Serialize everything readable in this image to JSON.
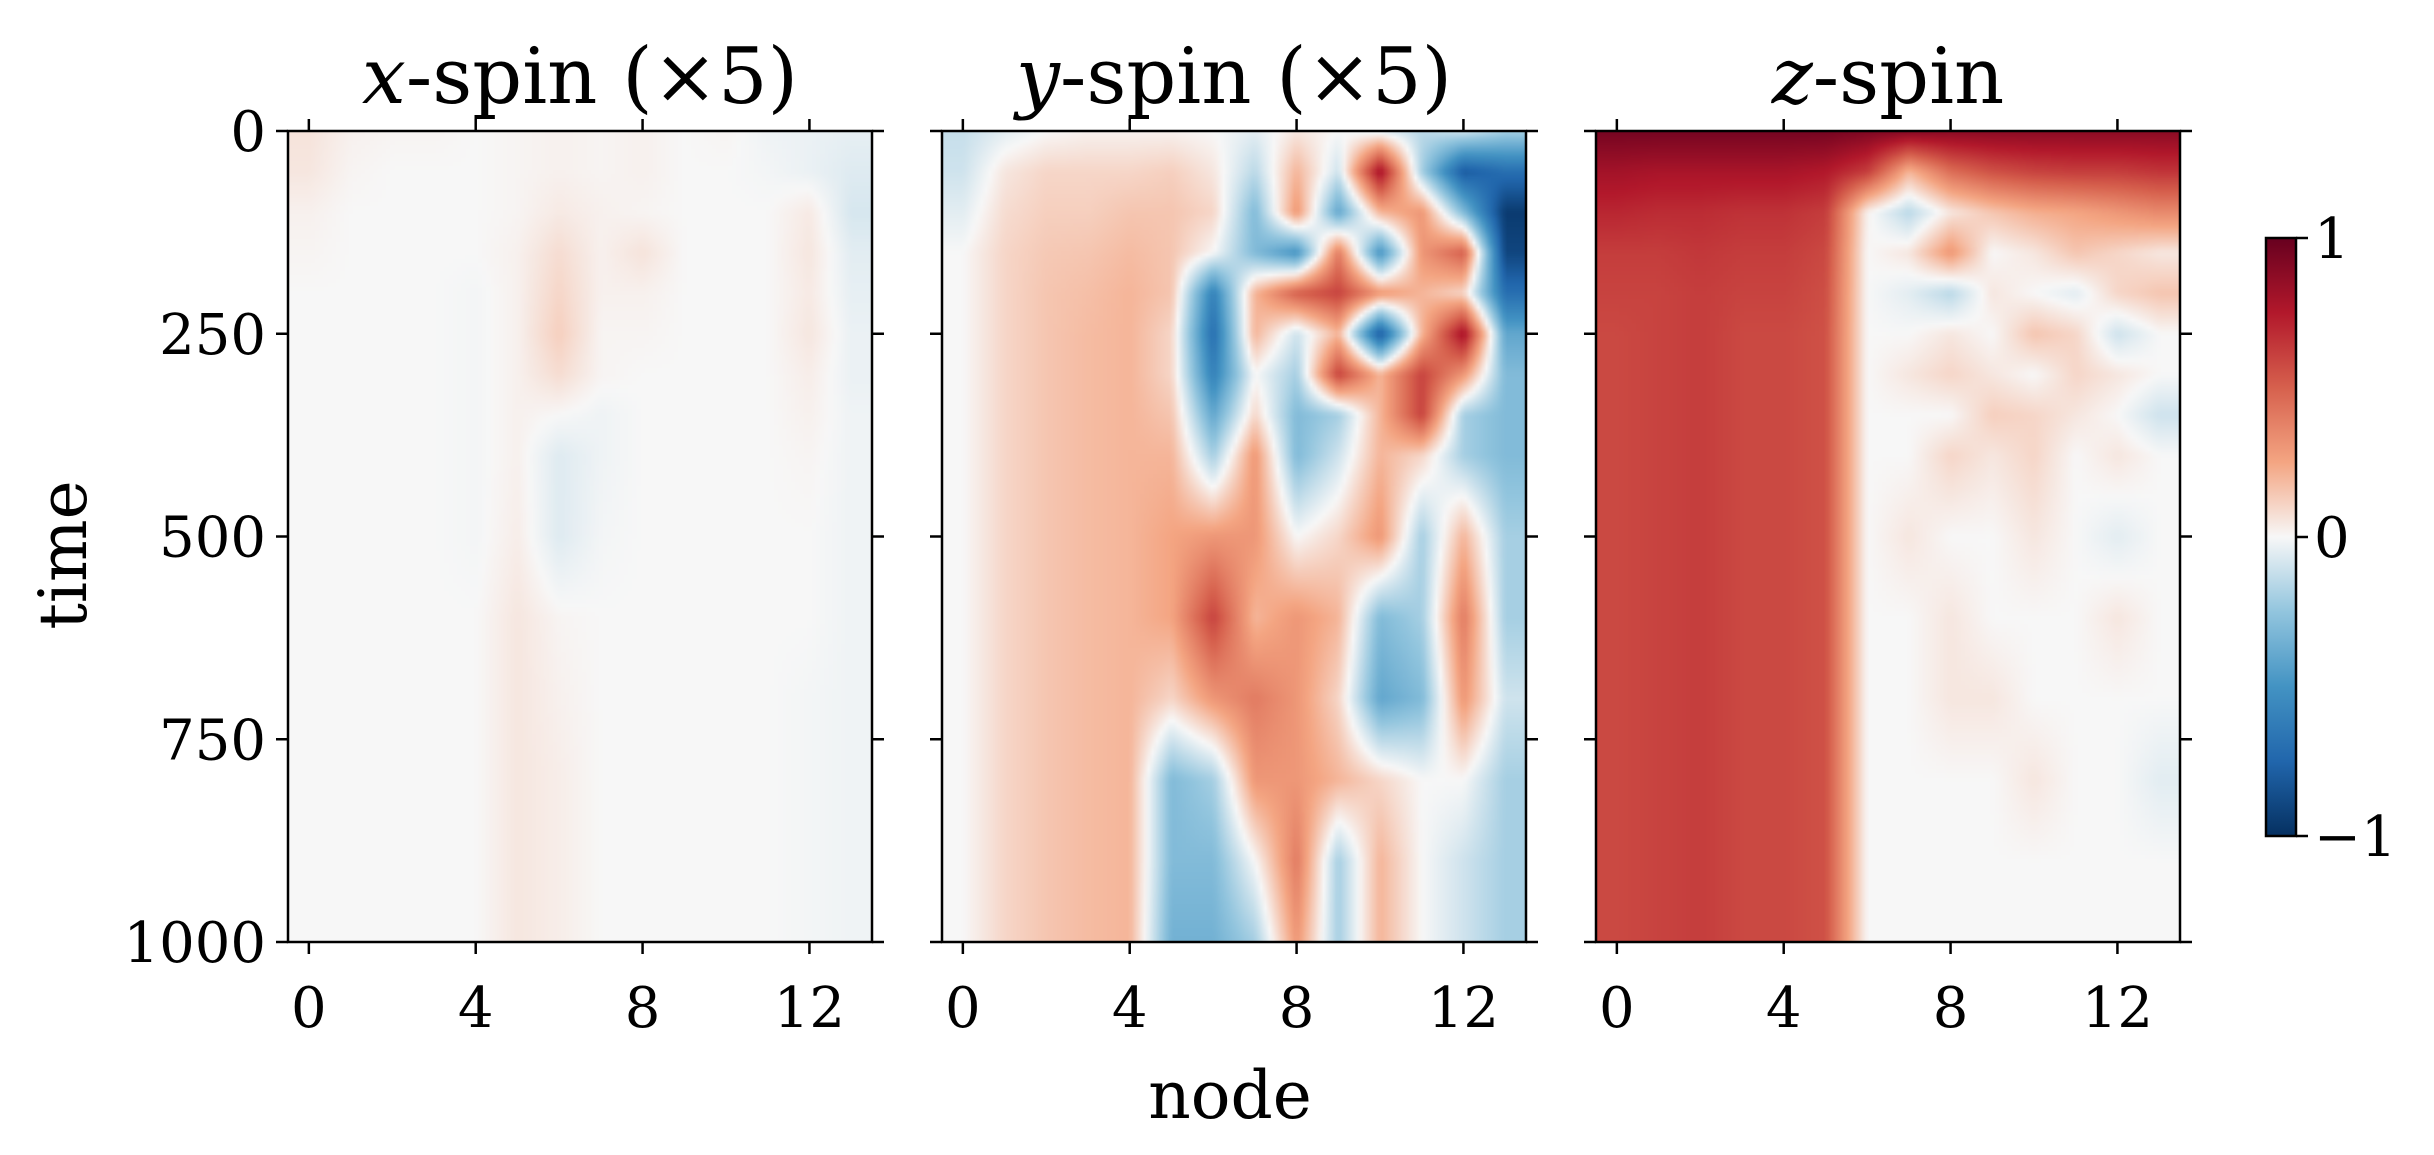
{
  "chart_data": {
    "type": "heatmap",
    "colormap": "RdBu_r",
    "xlabel": "node",
    "ylabel": "time",
    "xlim": [
      -0.5,
      13.5
    ],
    "ylim": [
      0,
      1000
    ],
    "y_inverted": true,
    "x_ticks": [
      0,
      4,
      8,
      12
    ],
    "x_tick_labels": [
      "0",
      "4",
      "8",
      "12"
    ],
    "y_ticks": [
      0,
      250,
      500,
      750,
      1000
    ],
    "y_tick_labels": [
      "0",
      "250",
      "500",
      "750",
      "1000"
    ],
    "colorbar": {
      "min": -1,
      "max": 1,
      "ticks": [
        -1,
        0,
        1
      ],
      "tick_labels": [
        "−1",
        "0",
        "1"
      ]
    },
    "times": [
      0,
      50,
      100,
      150,
      200,
      250,
      300,
      350,
      400,
      500,
      600,
      700,
      800,
      900,
      1000
    ],
    "nodes": [
      0,
      1,
      2,
      3,
      4,
      5,
      6,
      7,
      8,
      9,
      10,
      11,
      12,
      13
    ],
    "panels": [
      {
        "title_var": "x",
        "title_rest": "-spin (×5)",
        "values": [
          [
            0.06,
            0.02,
            0.01,
            0.01,
            0.0,
            0.01,
            0.02,
            0.01,
            0.02,
            0.0,
            0.01,
            -0.02,
            -0.03,
            -0.04
          ],
          [
            0.05,
            0.01,
            0.0,
            0.0,
            0.0,
            0.01,
            0.02,
            0.01,
            0.02,
            0.0,
            0.0,
            -0.01,
            -0.03,
            -0.06
          ],
          [
            0.02,
            0.0,
            0.0,
            0.0,
            0.0,
            0.01,
            0.04,
            0.02,
            0.01,
            0.0,
            0.0,
            0.0,
            0.04,
            -0.08
          ],
          [
            0.01,
            0.0,
            0.0,
            0.0,
            0.0,
            0.02,
            0.08,
            0.02,
            0.06,
            0.0,
            0.0,
            0.0,
            0.05,
            -0.05
          ],
          [
            0.0,
            0.0,
            0.0,
            0.0,
            -0.01,
            0.02,
            0.1,
            0.02,
            0.02,
            0.0,
            0.0,
            0.0,
            0.04,
            -0.04
          ],
          [
            0.0,
            0.0,
            0.0,
            0.0,
            -0.01,
            0.02,
            0.12,
            0.01,
            0.01,
            0.0,
            0.0,
            0.0,
            0.05,
            -0.03
          ],
          [
            0.0,
            0.0,
            0.0,
            0.0,
            -0.01,
            0.02,
            0.08,
            0.01,
            0.0,
            0.0,
            0.0,
            0.0,
            0.03,
            -0.03
          ],
          [
            0.0,
            0.0,
            0.0,
            0.0,
            -0.01,
            0.02,
            0.0,
            -0.02,
            0.0,
            0.0,
            0.0,
            0.0,
            0.02,
            -0.02
          ],
          [
            0.0,
            0.0,
            0.0,
            0.0,
            -0.01,
            0.02,
            -0.06,
            -0.02,
            0.0,
            0.0,
            0.0,
            0.0,
            0.01,
            -0.02
          ],
          [
            0.0,
            0.0,
            0.0,
            0.0,
            -0.01,
            0.03,
            -0.06,
            -0.01,
            0.0,
            0.0,
            0.0,
            0.0,
            0.0,
            -0.02
          ],
          [
            0.0,
            0.0,
            0.0,
            0.0,
            0.0,
            0.05,
            0.01,
            0.0,
            0.0,
            0.0,
            0.0,
            0.0,
            0.0,
            -0.02
          ],
          [
            0.0,
            0.0,
            0.0,
            0.0,
            0.0,
            0.05,
            0.02,
            0.0,
            0.0,
            0.0,
            0.0,
            0.0,
            -0.01,
            -0.02
          ],
          [
            0.0,
            0.0,
            0.0,
            0.0,
            0.0,
            0.05,
            0.03,
            0.0,
            0.0,
            0.0,
            0.0,
            0.0,
            -0.01,
            -0.02
          ],
          [
            0.0,
            0.0,
            0.0,
            0.0,
            0.0,
            0.05,
            0.03,
            0.0,
            0.0,
            0.0,
            0.0,
            0.0,
            -0.01,
            -0.02
          ],
          [
            0.0,
            0.0,
            0.0,
            0.0,
            0.0,
            0.05,
            0.03,
            0.0,
            0.0,
            0.0,
            0.0,
            0.0,
            -0.01,
            -0.02
          ]
        ]
      },
      {
        "title_var": "y",
        "title_rest": "-spin (×5)",
        "values": [
          [
            -0.12,
            -0.05,
            0.0,
            0.02,
            0.02,
            0.02,
            0.0,
            -0.05,
            0.05,
            0.0,
            -0.05,
            -0.15,
            -0.1,
            -0.2
          ],
          [
            -0.1,
            0.05,
            0.1,
            0.1,
            0.1,
            0.12,
            0.05,
            -0.15,
            0.2,
            -0.1,
            0.8,
            -0.2,
            -0.8,
            -0.7
          ],
          [
            -0.05,
            0.08,
            0.12,
            0.12,
            0.15,
            0.15,
            0.1,
            -0.3,
            0.3,
            -0.4,
            0.2,
            0.3,
            -0.3,
            -0.95
          ],
          [
            0.0,
            0.1,
            0.14,
            0.15,
            0.18,
            0.15,
            0.0,
            -0.3,
            -0.5,
            0.4,
            -0.5,
            0.3,
            0.5,
            -0.9
          ],
          [
            0.0,
            0.1,
            0.15,
            0.17,
            0.2,
            0.15,
            -0.6,
            0.2,
            0.5,
            0.6,
            0.3,
            0.2,
            0.1,
            -0.7
          ],
          [
            0.0,
            0.1,
            0.15,
            0.18,
            0.2,
            0.1,
            -0.7,
            0.2,
            -0.1,
            0.2,
            -0.8,
            0.2,
            0.8,
            -0.4
          ],
          [
            0.0,
            0.1,
            0.15,
            0.18,
            0.2,
            0.1,
            -0.6,
            0.0,
            -0.2,
            0.6,
            0.2,
            0.6,
            0.3,
            -0.3
          ],
          [
            0.0,
            0.1,
            0.15,
            0.18,
            0.2,
            0.15,
            -0.4,
            0.1,
            -0.3,
            -0.2,
            0.2,
            0.6,
            -0.2,
            -0.3
          ],
          [
            0.0,
            0.1,
            0.15,
            0.18,
            0.2,
            0.2,
            -0.2,
            0.3,
            -0.3,
            -0.1,
            0.2,
            0.1,
            -0.2,
            -0.3
          ],
          [
            0.0,
            0.1,
            0.15,
            0.18,
            0.2,
            0.25,
            0.3,
            0.3,
            0.0,
            0.1,
            0.3,
            -0.2,
            0.2,
            -0.2
          ],
          [
            0.0,
            0.1,
            0.15,
            0.18,
            0.2,
            0.25,
            0.6,
            0.2,
            0.3,
            0.2,
            -0.3,
            -0.2,
            0.4,
            -0.2
          ],
          [
            0.0,
            0.1,
            0.15,
            0.18,
            0.2,
            0.1,
            0.3,
            0.4,
            0.3,
            0.1,
            -0.4,
            -0.3,
            0.3,
            -0.1
          ],
          [
            0.0,
            0.1,
            0.15,
            0.18,
            0.2,
            -0.3,
            -0.2,
            0.3,
            0.3,
            0.2,
            0.1,
            0.0,
            0.0,
            -0.2
          ],
          [
            0.0,
            0.1,
            0.15,
            0.18,
            0.2,
            -0.3,
            -0.3,
            0.0,
            0.4,
            -0.2,
            0.2,
            0.0,
            -0.1,
            -0.2
          ],
          [
            0.0,
            0.1,
            0.15,
            0.18,
            0.2,
            -0.35,
            -0.35,
            -0.2,
            0.3,
            -0.2,
            0.2,
            0.0,
            -0.1,
            -0.2
          ]
        ]
      },
      {
        "title_var": "z",
        "title_rest": "-spin",
        "values": [
          [
            0.95,
            0.95,
            0.95,
            0.95,
            0.95,
            0.95,
            0.92,
            0.9,
            0.88,
            0.88,
            0.88,
            0.88,
            0.88,
            0.88
          ],
          [
            0.8,
            0.78,
            0.78,
            0.78,
            0.78,
            0.75,
            0.62,
            0.2,
            0.45,
            0.55,
            0.6,
            0.62,
            0.62,
            0.65
          ],
          [
            0.7,
            0.68,
            0.68,
            0.66,
            0.66,
            0.62,
            0.02,
            -0.15,
            0.05,
            0.15,
            0.22,
            0.25,
            0.3,
            0.35
          ],
          [
            0.62,
            0.62,
            0.64,
            0.62,
            0.62,
            0.58,
            0.0,
            0.05,
            0.3,
            0.0,
            0.05,
            0.15,
            0.1,
            0.05
          ],
          [
            0.6,
            0.6,
            0.62,
            0.6,
            0.6,
            0.56,
            0.0,
            -0.05,
            -0.15,
            0.05,
            0.0,
            -0.05,
            0.1,
            0.15
          ],
          [
            0.58,
            0.6,
            0.62,
            0.58,
            0.58,
            0.55,
            0.0,
            0.0,
            0.05,
            0.0,
            0.15,
            0.1,
            -0.1,
            0.0
          ],
          [
            0.58,
            0.6,
            0.62,
            0.58,
            0.58,
            0.55,
            0.0,
            0.05,
            0.1,
            0.05,
            0.0,
            0.1,
            0.05,
            0.0
          ],
          [
            0.58,
            0.6,
            0.62,
            0.58,
            0.58,
            0.55,
            0.0,
            0.0,
            0.0,
            0.12,
            0.1,
            0.05,
            0.0,
            -0.1
          ],
          [
            0.58,
            0.6,
            0.62,
            0.58,
            0.58,
            0.55,
            0.0,
            0.0,
            0.1,
            0.05,
            0.1,
            0.0,
            0.05,
            0.0
          ],
          [
            0.58,
            0.6,
            0.62,
            0.58,
            0.58,
            0.55,
            0.0,
            0.05,
            0.0,
            0.0,
            0.05,
            0.0,
            -0.05,
            0.0
          ],
          [
            0.58,
            0.6,
            0.62,
            0.58,
            0.58,
            0.55,
            0.0,
            0.0,
            0.05,
            0.0,
            0.0,
            0.0,
            0.05,
            0.0
          ],
          [
            0.58,
            0.6,
            0.62,
            0.58,
            0.58,
            0.55,
            0.0,
            0.0,
            0.05,
            0.05,
            0.0,
            0.0,
            0.0,
            0.0
          ],
          [
            0.58,
            0.6,
            0.62,
            0.58,
            0.58,
            0.55,
            0.0,
            0.0,
            0.0,
            0.0,
            0.05,
            0.0,
            0.0,
            -0.05
          ],
          [
            0.58,
            0.6,
            0.62,
            0.58,
            0.58,
            0.55,
            0.0,
            0.0,
            0.0,
            0.0,
            0.0,
            0.0,
            0.0,
            0.0
          ],
          [
            0.58,
            0.6,
            0.62,
            0.58,
            0.58,
            0.55,
            0.0,
            0.0,
            0.0,
            0.0,
            0.0,
            0.0,
            0.0,
            0.0
          ]
        ]
      }
    ]
  }
}
